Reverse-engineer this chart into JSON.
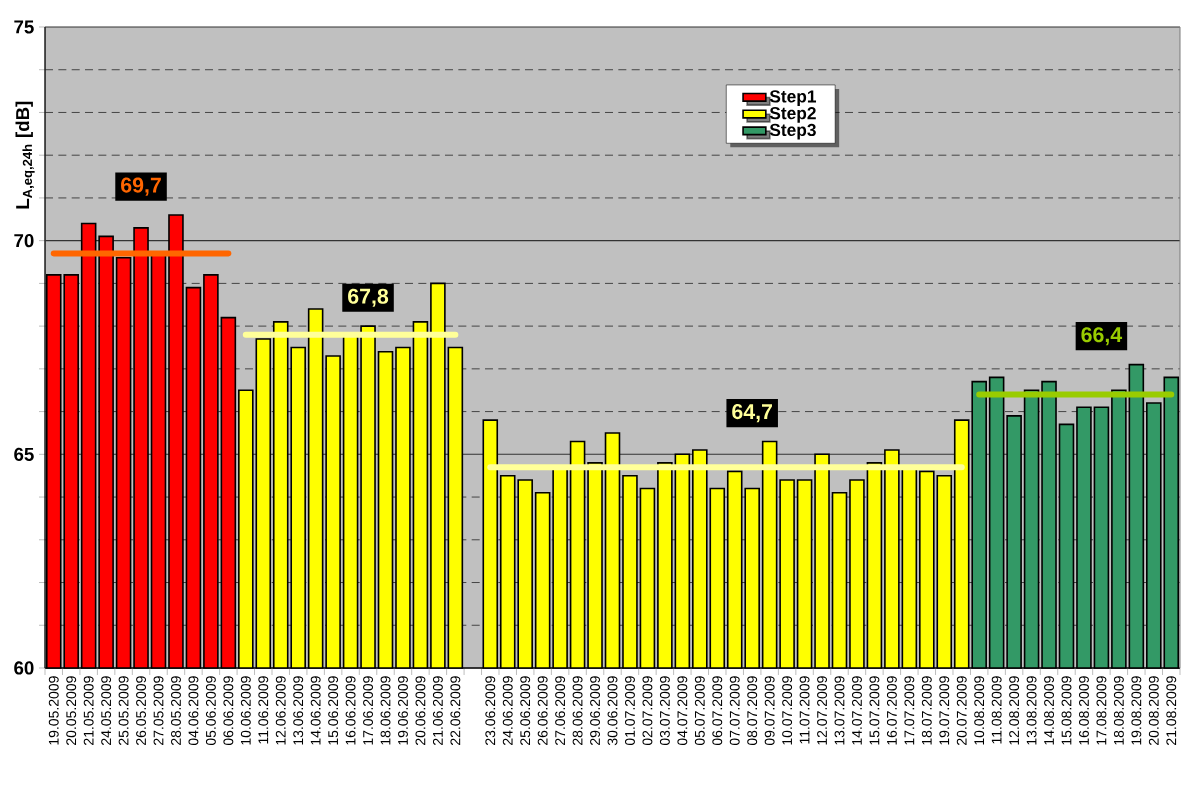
{
  "chart_data": {
    "type": "bar",
    "ylabel": "L$_{A,eq,24h}$ [dB]",
    "categories": [
      "19.05.2009",
      "20.05.2009",
      "21.05.2009",
      "24.05.2009",
      "25.05.2009",
      "26.05.2009",
      "27.05.2009",
      "28.05.2009",
      "04.06.2009",
      "05.06.2009",
      "06.06.2009",
      "10.06.2009",
      "11.06.2009",
      "12.06.2009",
      "13.06.2009",
      "14.06.2009",
      "15.06.2009",
      "16.06.2009",
      "17.06.2009",
      "18.06.2009",
      "19.06.2009",
      "20.06.2009",
      "21.06.2009",
      "22.06.2009",
      null,
      "23.06.2009",
      "24.06.2009",
      "25.06.2009",
      "26.06.2009",
      "27.06.2009",
      "28.06.2009",
      "29.06.2009",
      "30.06.2009",
      "01.07.2009",
      "02.07.2009",
      "03.07.2009",
      "04.07.2009",
      "05.07.2009",
      "06.07.2009",
      "07.07.2009",
      "08.07.2009",
      "09.07.2009",
      "10.07.2009",
      "11.07.2009",
      "12.07.2009",
      "13.07.2009",
      "14.07.2009",
      "15.07.2009",
      "16.07.2009",
      "17.07.2009",
      "18.07.2009",
      "19.07.2009",
      "20.07.2009",
      "10.08.2009",
      "11.08.2009",
      "12.08.2009",
      "13.08.2009",
      "14.08.2009",
      "15.08.2009",
      "16.08.2009",
      "17.08.2009",
      "18.08.2009",
      "19.08.2009",
      "20.08.2009",
      "21.08.2009"
    ],
    "series": [
      {
        "name": "Step1",
        "color": "#ff0000",
        "values": [
          69.2,
          69.2,
          70.4,
          70.1,
          69.6,
          70.3,
          69.7,
          70.6,
          68.9,
          69.2,
          68.2,
          null,
          null,
          null,
          null,
          null,
          null,
          null,
          null,
          null,
          null,
          null,
          null,
          null,
          null,
          null,
          null,
          null,
          null,
          null,
          null,
          null,
          null,
          null,
          null,
          null,
          null,
          null,
          null,
          null,
          null,
          null,
          null,
          null,
          null,
          null,
          null,
          null,
          null,
          null,
          null,
          null,
          null,
          null,
          null,
          null,
          null,
          null,
          null,
          null,
          null,
          null,
          null,
          null,
          null
        ]
      },
      {
        "name": "Step2",
        "color": "#ffff00",
        "values": [
          null,
          null,
          null,
          null,
          null,
          null,
          null,
          null,
          null,
          null,
          null,
          66.5,
          67.7,
          68.1,
          67.5,
          68.4,
          67.3,
          67.8,
          68.0,
          67.4,
          67.5,
          68.1,
          69.0,
          67.5,
          null,
          65.8,
          64.5,
          64.4,
          64.1,
          64.7,
          65.3,
          64.8,
          65.5,
          64.5,
          64.2,
          64.8,
          65.0,
          65.1,
          64.2,
          64.6,
          64.2,
          65.3,
          64.4,
          64.4,
          65.0,
          64.1,
          64.4,
          64.8,
          65.1,
          64.7,
          64.6,
          64.5,
          65.8,
          null,
          null,
          null,
          null,
          null,
          null,
          null,
          null,
          null,
          null,
          null,
          null
        ]
      },
      {
        "name": "Step3",
        "color": "#339966",
        "values": [
          null,
          null,
          null,
          null,
          null,
          null,
          null,
          null,
          null,
          null,
          null,
          null,
          null,
          null,
          null,
          null,
          null,
          null,
          null,
          null,
          null,
          null,
          null,
          null,
          null,
          null,
          null,
          null,
          null,
          null,
          null,
          null,
          null,
          null,
          null,
          null,
          null,
          null,
          null,
          null,
          null,
          null,
          null,
          null,
          null,
          null,
          null,
          null,
          null,
          null,
          null,
          null,
          null,
          66.7,
          66.8,
          65.9,
          66.5,
          66.7,
          65.7,
          66.1,
          66.1,
          66.5,
          67.1,
          66.2,
          66.8
        ]
      },
      {
        "type": "line",
        "color": "#ff6600",
        "values": [
          69.7,
          69.7,
          69.7,
          69.7,
          69.7,
          69.7,
          69.7,
          69.7,
          69.7,
          69.7,
          69.7,
          null,
          null,
          null,
          null,
          null,
          null,
          null,
          null,
          null,
          null,
          null,
          null,
          null,
          null,
          null,
          null,
          null,
          null,
          null,
          null,
          null,
          null,
          null,
          null,
          null,
          null,
          null,
          null,
          null,
          null,
          null,
          null,
          null,
          null,
          null,
          null,
          null,
          null,
          null,
          null,
          null,
          null,
          null,
          null,
          null,
          null,
          null,
          null,
          null,
          null,
          null,
          null,
          null,
          null
        ],
        "value_labels": [
          null,
          null,
          null,
          null,
          null,
          "69,7",
          null,
          null,
          null,
          null,
          null,
          null,
          null,
          null,
          null,
          null,
          null,
          null,
          null,
          null,
          null,
          null,
          null,
          null,
          null,
          null,
          null,
          null,
          null,
          null,
          null,
          null,
          null,
          null,
          null,
          null,
          null,
          null,
          null,
          null,
          null,
          null,
          null,
          null,
          null,
          null,
          null,
          null,
          null,
          null,
          null,
          null,
          null,
          null,
          null,
          null,
          null,
          null,
          null,
          null,
          null,
          null,
          null,
          null,
          null
        ]
      },
      {
        "type": "line",
        "color": "#ffff99",
        "values": [
          null,
          null,
          null,
          null,
          null,
          null,
          null,
          null,
          null,
          null,
          null,
          67.8,
          67.8,
          67.8,
          67.8,
          67.8,
          67.8,
          67.8,
          67.8,
          67.8,
          67.8,
          67.8,
          67.8,
          67.8,
          null,
          null,
          null,
          null,
          null,
          null,
          null,
          null,
          null,
          null,
          null,
          null,
          null,
          null,
          null,
          null,
          null,
          null,
          null,
          null,
          null,
          null,
          null,
          null,
          null,
          null,
          null,
          null,
          null,
          null,
          null,
          null,
          null,
          null,
          null,
          null,
          null,
          null,
          null,
          null,
          null
        ],
        "value_labels": [
          null,
          null,
          null,
          null,
          null,
          null,
          null,
          null,
          null,
          null,
          null,
          null,
          null,
          null,
          null,
          null,
          null,
          null,
          "67,8",
          null,
          null,
          null,
          null,
          null,
          null,
          null,
          null,
          null,
          null,
          null,
          null,
          null,
          null,
          null,
          null,
          null,
          null,
          null,
          null,
          null,
          null,
          null,
          null,
          null,
          null,
          null,
          null,
          null,
          null,
          null,
          null,
          null,
          null,
          null,
          null,
          null,
          null,
          null,
          null,
          null,
          null,
          null,
          null,
          null,
          null
        ]
      },
      {
        "type": "line",
        "color": "#ffff99",
        "values": [
          null,
          null,
          null,
          null,
          null,
          null,
          null,
          null,
          null,
          null,
          null,
          null,
          null,
          null,
          null,
          null,
          null,
          null,
          null,
          null,
          null,
          null,
          null,
          null,
          null,
          64.7,
          64.7,
          64.7,
          64.7,
          64.7,
          64.7,
          64.7,
          64.7,
          64.7,
          64.7,
          64.7,
          64.7,
          64.7,
          64.7,
          64.7,
          64.7,
          64.7,
          64.7,
          64.7,
          64.7,
          64.7,
          64.7,
          64.7,
          64.7,
          64.7,
          64.7,
          64.7,
          64.7,
          null,
          null,
          null,
          null,
          null,
          null,
          null,
          null,
          null,
          null,
          null,
          null
        ],
        "value_labels": [
          null,
          null,
          null,
          null,
          null,
          null,
          null,
          null,
          null,
          null,
          null,
          null,
          null,
          null,
          null,
          null,
          null,
          null,
          null,
          null,
          null,
          null,
          null,
          null,
          null,
          null,
          null,
          null,
          null,
          null,
          null,
          null,
          null,
          null,
          null,
          null,
          null,
          null,
          null,
          null,
          "64,7",
          null,
          null,
          null,
          null,
          null,
          null,
          null,
          null,
          null,
          null,
          null,
          null,
          null,
          null,
          null,
          null,
          null,
          null,
          null,
          null,
          null,
          null,
          null,
          null
        ]
      },
      {
        "type": "line",
        "color": "#99cc00",
        "values": [
          null,
          null,
          null,
          null,
          null,
          null,
          null,
          null,
          null,
          null,
          null,
          null,
          null,
          null,
          null,
          null,
          null,
          null,
          null,
          null,
          null,
          null,
          null,
          null,
          null,
          null,
          null,
          null,
          null,
          null,
          null,
          null,
          null,
          null,
          null,
          null,
          null,
          null,
          null,
          null,
          null,
          null,
          null,
          null,
          null,
          null,
          null,
          null,
          null,
          null,
          null,
          null,
          null,
          66.4,
          66.4,
          66.4,
          66.4,
          66.4,
          66.4,
          66.4,
          66.4,
          66.4,
          66.4,
          66.4,
          66.4
        ],
        "value_labels": [
          null,
          null,
          null,
          null,
          null,
          null,
          null,
          null,
          null,
          null,
          null,
          null,
          null,
          null,
          null,
          null,
          null,
          null,
          null,
          null,
          null,
          null,
          null,
          null,
          null,
          null,
          null,
          null,
          null,
          null,
          null,
          null,
          null,
          null,
          null,
          null,
          null,
          null,
          null,
          null,
          null,
          null,
          null,
          null,
          null,
          null,
          null,
          null,
          null,
          null,
          null,
          null,
          null,
          null,
          null,
          null,
          null,
          null,
          null,
          null,
          "66,4",
          null,
          null,
          null,
          null
        ]
      }
    ],
    "ylim": [
      60,
      75
    ],
    "yticks": [
      60,
      {
        "value": 61,
        "label": null
      },
      {
        "value": 62,
        "label": null
      },
      {
        "value": 63,
        "label": null
      },
      {
        "value": 64,
        "label": null
      },
      65,
      {
        "value": 66,
        "label": null
      },
      {
        "value": 67,
        "label": null
      },
      {
        "value": 68,
        "label": null
      },
      {
        "value": 69,
        "label": null
      },
      70,
      {
        "value": 71,
        "label": null
      },
      {
        "value": 72,
        "label": null
      },
      {
        "value": 73,
        "label": null
      },
      {
        "value": 74,
        "label": null
      },
      75
    ],
    "grid": "y",
    "legend": "top right"
  }
}
